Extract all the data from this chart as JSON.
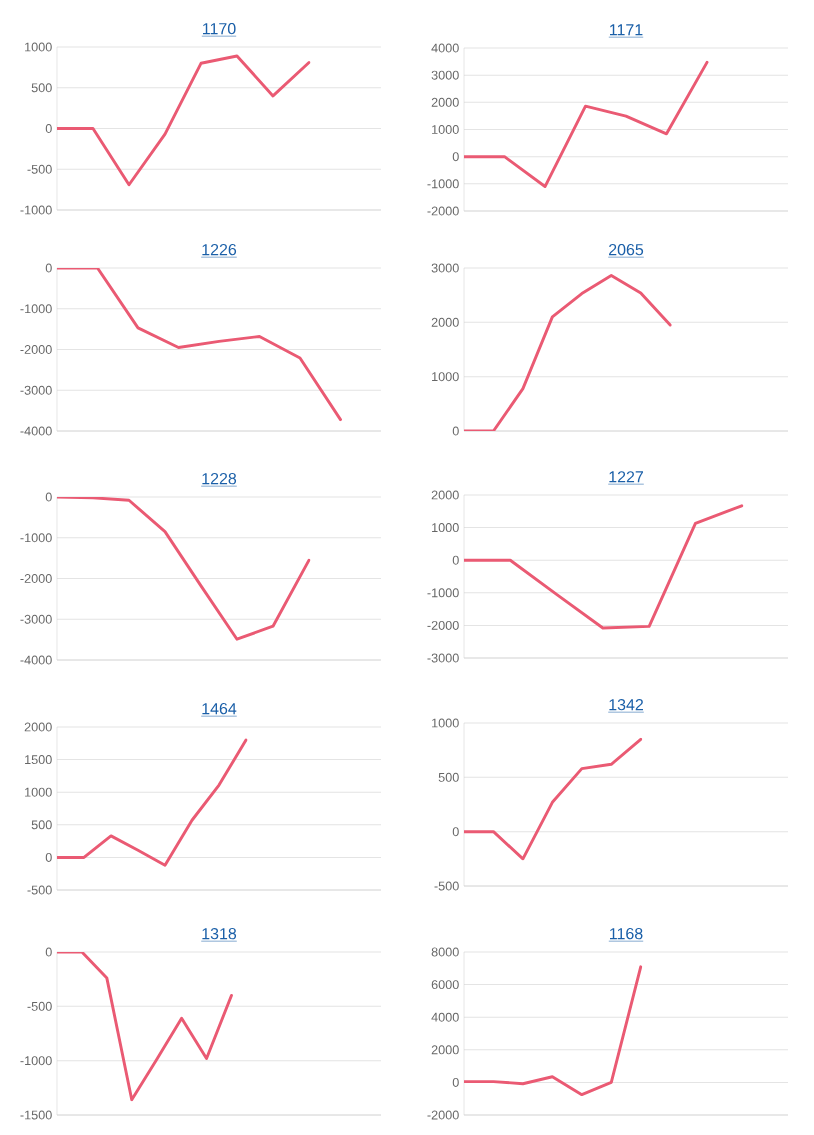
{
  "chart_data": [
    {
      "type": "line",
      "title": "1170",
      "categories": [
        null,
        null,
        null,
        null,
        null,
        null,
        null,
        null,
        null,
        null
      ],
      "values": [
        0,
        0,
        -690,
        -70,
        800,
        890,
        400,
        810,
        null,
        null
      ],
      "color": "#ea5a73",
      "ylim": [
        -1000,
        1000
      ],
      "yticks": [
        -1000,
        -500,
        0,
        500,
        1000
      ],
      "grid": "y",
      "tick_labels": "y"
    },
    {
      "type": "line",
      "title": "1171",
      "categories": [
        null,
        null,
        null,
        null,
        null,
        null,
        null,
        null,
        null
      ],
      "values": [
        0,
        0,
        -1100,
        1860,
        1490,
        840,
        3470,
        null,
        null
      ],
      "color": "#ea5a73",
      "ylim": [
        -2000,
        4000
      ],
      "yticks": [
        -2000,
        -1000,
        0,
        1000,
        2000,
        3000,
        4000
      ],
      "grid": "y",
      "tick_labels": "y"
    },
    {
      "type": "line",
      "title": "1226",
      "categories": [
        null,
        null,
        null,
        null,
        null,
        null,
        null,
        null,
        null
      ],
      "values": [
        0,
        0,
        -1470,
        -1950,
        -1800,
        -1680,
        -2210,
        -3720,
        null
      ],
      "color": "#ea5a73",
      "ylim": [
        -4000,
        0
      ],
      "yticks": [
        -4000,
        -3000,
        -2000,
        -1000,
        0
      ],
      "grid": "y",
      "tick_labels": "y"
    },
    {
      "type": "line",
      "title": "2065",
      "categories": [
        null,
        null,
        null,
        null,
        null,
        null,
        null,
        null,
        null,
        null,
        null,
        null
      ],
      "values": [
        0,
        0,
        780,
        2100,
        2530,
        2860,
        2540,
        1950,
        null,
        null,
        null,
        null
      ],
      "color": "#ea5a73",
      "ylim": [
        0,
        3000
      ],
      "yticks": [
        0,
        1000,
        2000,
        3000
      ],
      "grid": "y",
      "tick_labels": "y"
    },
    {
      "type": "line",
      "title": "1228",
      "categories": [
        null,
        null,
        null,
        null,
        null,
        null,
        null,
        null,
        null,
        null
      ],
      "values": [
        0,
        -20,
        -80,
        -850,
        -2180,
        -3490,
        -3170,
        -1550,
        null,
        null
      ],
      "color": "#ea5a73",
      "ylim": [
        -4000,
        0
      ],
      "yticks": [
        -4000,
        -3000,
        -2000,
        -1000,
        0
      ],
      "grid": "y",
      "tick_labels": "y"
    },
    {
      "type": "line",
      "title": "1227",
      "categories": [
        null,
        null,
        null,
        null,
        null,
        null,
        null,
        null
      ],
      "values": [
        0,
        0,
        -1050,
        -2080,
        -2030,
        1130,
        1670,
        null
      ],
      "color": "#ea5a73",
      "ylim": [
        -3000,
        2000
      ],
      "yticks": [
        -3000,
        -2000,
        -1000,
        0,
        1000,
        2000
      ],
      "grid": "y",
      "tick_labels": "y"
    },
    {
      "type": "line",
      "title": "1464",
      "categories": [
        null,
        null,
        null,
        null,
        null,
        null,
        null,
        null,
        null,
        null,
        null,
        null,
        null
      ],
      "values": [
        0,
        0,
        330,
        110,
        -120,
        570,
        1110,
        1800,
        null,
        null,
        null,
        null,
        null
      ],
      "color": "#ea5a73",
      "ylim": [
        -500,
        2000
      ],
      "yticks": [
        -500,
        0,
        500,
        1000,
        1500,
        2000
      ],
      "grid": "y",
      "tick_labels": "y"
    },
    {
      "type": "line",
      "title": "1342",
      "categories": [
        null,
        null,
        null,
        null,
        null,
        null,
        null,
        null,
        null,
        null,
        null,
        null
      ],
      "values": [
        0,
        0,
        -250,
        270,
        580,
        620,
        850,
        null,
        null,
        null,
        null,
        null
      ],
      "color": "#ea5a73",
      "ylim": [
        -500,
        1000
      ],
      "yticks": [
        -500,
        0,
        500,
        1000
      ],
      "grid": "y",
      "tick_labels": "y"
    },
    {
      "type": "line",
      "title": "1318",
      "categories": [
        null,
        null,
        null,
        null,
        null,
        null,
        null,
        null,
        null,
        null,
        null,
        null,
        null,
        null
      ],
      "values": [
        0,
        0,
        -240,
        -1360,
        -990,
        -610,
        -980,
        -400,
        null,
        null,
        null,
        null,
        null,
        null
      ],
      "color": "#ea5a73",
      "ylim": [
        -1500,
        0
      ],
      "yticks": [
        -1500,
        -1000,
        -500,
        0
      ],
      "grid": "y",
      "tick_labels": "y"
    },
    {
      "type": "line",
      "title": "1168",
      "categories": [
        null,
        null,
        null,
        null,
        null,
        null,
        null,
        null,
        null,
        null,
        null,
        null
      ],
      "values": [
        50,
        50,
        -80,
        350,
        -750,
        0,
        7090,
        null,
        null,
        null,
        null,
        null
      ],
      "color": "#ea5a73",
      "ylim": [
        -2000,
        8000
      ],
      "yticks": [
        -2000,
        0,
        2000,
        4000,
        6000,
        8000
      ],
      "grid": "y",
      "tick_labels": "y"
    }
  ]
}
